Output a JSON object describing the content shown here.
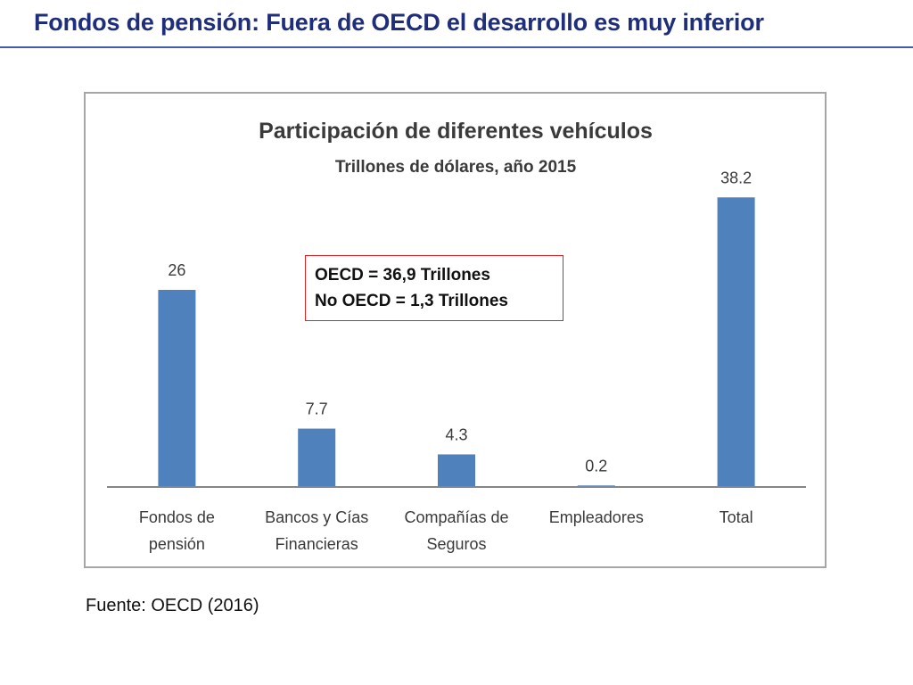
{
  "slide": {
    "title": "Fondos de pensión: Fuera de OECD el desarrollo es muy inferior",
    "source": "Fuente: OECD (2016)"
  },
  "annotation": {
    "lines": [
      "OECD = 36,9 Trillones",
      "No OECD = 1,3 Trillones"
    ],
    "border_color": "#e02424"
  },
  "chart_data": {
    "type": "bar",
    "title": "Participación de diferentes vehículos",
    "subtitle": "Trillones de dólares, año 2015",
    "categories": [
      [
        "Fondos de",
        "pensión"
      ],
      [
        "Bancos y Cías",
        "Financieras"
      ],
      [
        "Compañías de",
        "Seguros"
      ],
      [
        "Empleadores"
      ],
      [
        "Total"
      ]
    ],
    "values": [
      26,
      7.7,
      4.3,
      0.2,
      38.2
    ],
    "value_labels": [
      "26",
      "7.7",
      "4.3",
      "0.2",
      "38.2"
    ],
    "ylim": [
      0,
      40
    ],
    "grid": false,
    "bar_color": "#4f81bd"
  }
}
